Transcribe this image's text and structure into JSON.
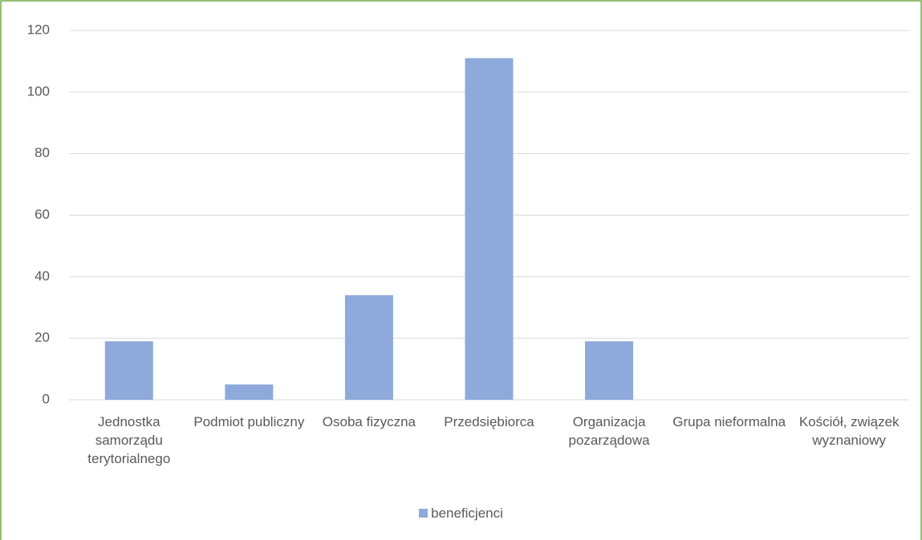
{
  "chart_data": {
    "type": "bar",
    "categories": [
      "Jednostka samorządu terytorialnego",
      "Podmiot publiczny",
      "Osoba fizyczna",
      "Przedsiębiorca",
      "Organizacja pozarządowa",
      "Grupa nieformalna",
      "Kościół, związek wyznaniowy"
    ],
    "series": [
      {
        "name": "beneficjenci",
        "color": "#8eaadb",
        "values": [
          19,
          5,
          34,
          111,
          19,
          0,
          0
        ]
      }
    ],
    "ylim": [
      0,
      120
    ],
    "yticks": [
      0,
      20,
      40,
      60,
      80,
      100,
      120
    ],
    "grid": true,
    "legend": "bottom"
  }
}
